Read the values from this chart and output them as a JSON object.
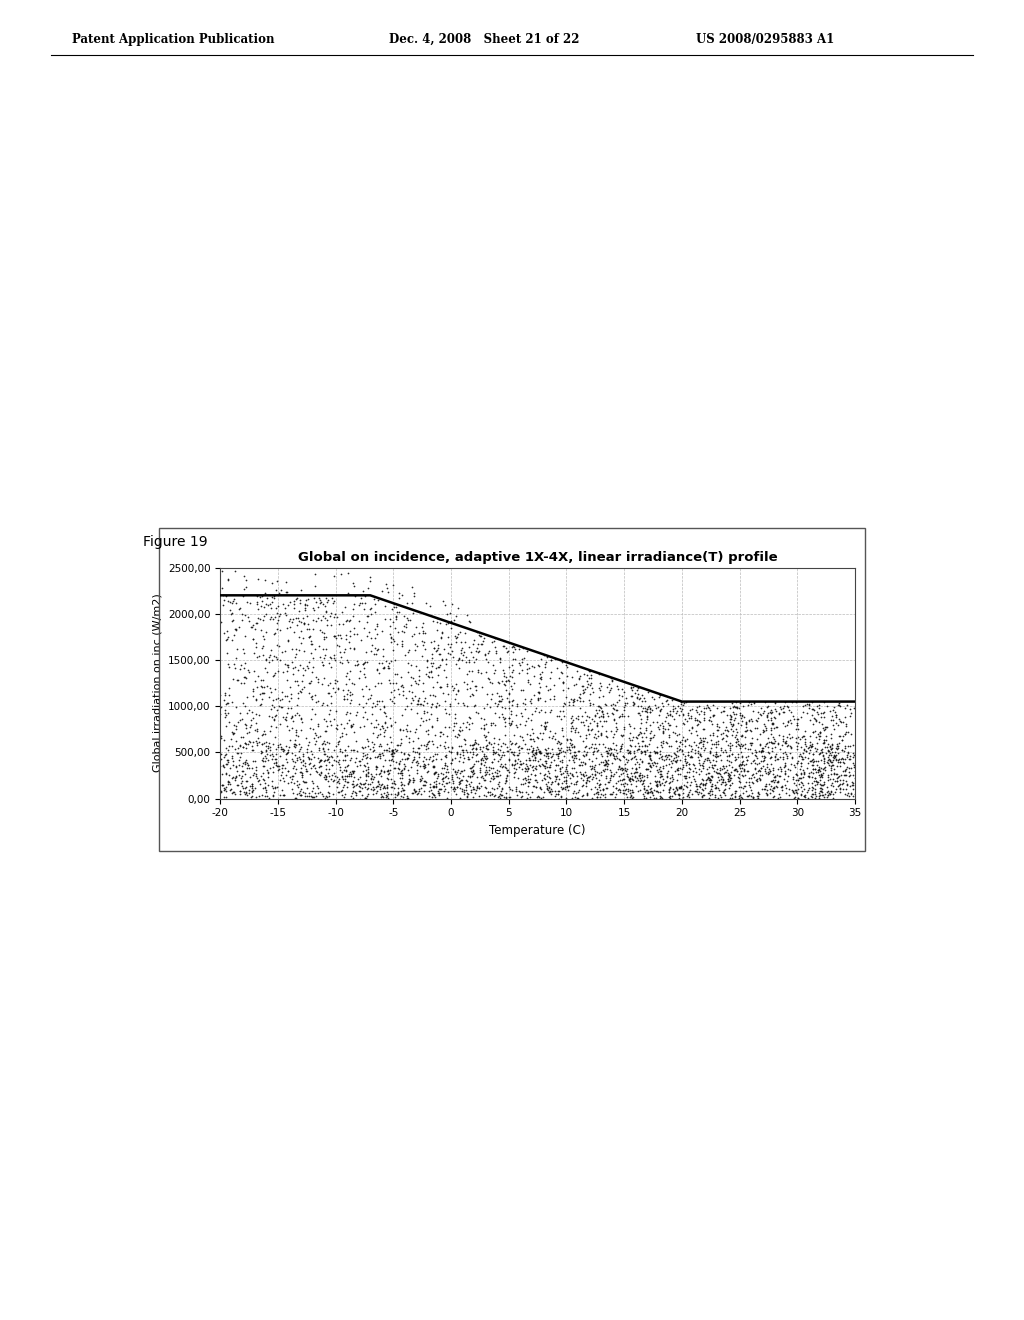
{
  "title": "Global on incidence, adaptive 1X-4X, linear irradiance(T) profile",
  "xlabel": "Temperature (C)",
  "ylabel": "Global irradiation on inc (W/m2)",
  "xlim": [
    -20,
    35
  ],
  "ylim": [
    0,
    2500
  ],
  "xticks": [
    -20,
    -15,
    -10,
    -5,
    0,
    5,
    10,
    15,
    20,
    25,
    30,
    35
  ],
  "yticks": [
    0.0,
    500.0,
    1000.0,
    1500.0,
    2000.0,
    2500.0
  ],
  "ytick_labels": [
    "0,00",
    "500,00",
    "1000,00",
    "1500,00",
    "2000,00",
    "2500,00"
  ],
  "figure_label": "Figure 19",
  "header_left": "Patent Application Publication",
  "header_mid": "Dec. 4, 2008   Sheet 21 of 22",
  "header_right": "US 2008/0295883 A1",
  "scatter_color": "#111111",
  "line_color": "#000000",
  "grid_color": "#bbbbbb",
  "background_color": "#ffffff",
  "plot_bg_color": "#ffffff",
  "line_points_x": [
    -20,
    -7,
    20,
    35
  ],
  "line_points_y": [
    2200,
    2200,
    1050,
    1050
  ],
  "seed": 42,
  "n_points": 3500
}
